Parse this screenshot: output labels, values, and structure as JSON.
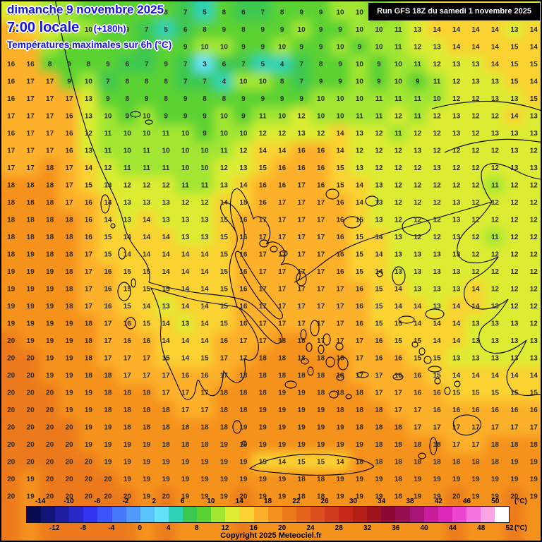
{
  "header": {
    "date": "dimanche 9 novembre 2025",
    "time": "7:00 locale",
    "offset": "(+180h)",
    "parameter": "Températures maximales sur 6h (°C)"
  },
  "run_info": {
    "label": "Run GFS 18Z du samedi 1 novembre 2025"
  },
  "copyright": "Copyright 2025 Meteociel.fr",
  "colors": {
    "header_text": "#1414e6",
    "number_text": "#2d2d2d",
    "run_bg": "#000000",
    "run_fg": "#ffffff"
  },
  "legend": {
    "unit": "(°C)",
    "min": -16,
    "max": 52,
    "step": 2,
    "top_ticks": [
      -14,
      -10,
      -6,
      -2,
      2,
      6,
      10,
      14,
      18,
      22,
      26,
      30,
      34,
      38,
      42,
      46,
      50
    ],
    "bottom_ticks": [
      -12,
      -8,
      -4,
      0,
      4,
      8,
      12,
      16,
      20,
      24,
      28,
      32,
      36,
      40,
      44,
      48,
      52
    ],
    "segment_colors": [
      "#0a0a50",
      "#141478",
      "#1e1ea0",
      "#2828c8",
      "#3232f0",
      "#3c55fa",
      "#4678fa",
      "#509bfa",
      "#5ac3fa",
      "#64e1f5",
      "#2ed2b4",
      "#3cc850",
      "#5ad232",
      "#a0e632",
      "#dcec32",
      "#fad232",
      "#fdb02a",
      "#f5921e",
      "#ec7a1a",
      "#e6641e",
      "#dc501e",
      "#d23c1e",
      "#c82819",
      "#b41e14",
      "#a0141e",
      "#8c0a32",
      "#960f50",
      "#aa1478",
      "#c81e9b",
      "#dc28b9",
      "#eb46cd",
      "#f573dc",
      "#faa5e6",
      "#ffffff"
    ]
  },
  "chart_data": {
    "type": "heatmap",
    "title": "Températures maximales sur 6h (°C)",
    "unit": "°C",
    "grid": {
      "cols": 28,
      "rows": 29,
      "values": [
        [
          12,
          12,
          11,
          10,
          9,
          9,
          8,
          9,
          8,
          7,
          5,
          8,
          6,
          7,
          8,
          9,
          9,
          10,
          10,
          9,
          10,
          13,
          14,
          14,
          14,
          14,
          14,
          13
        ],
        [
          16,
          14,
          12,
          11,
          10,
          9,
          9,
          7,
          5,
          6,
          8,
          9,
          8,
          9,
          9,
          10,
          9,
          9,
          10,
          10,
          11,
          13,
          14,
          14,
          14,
          14,
          13,
          14
        ],
        [
          17,
          16,
          10,
          9,
          9,
          8,
          9,
          7,
          8,
          9,
          10,
          10,
          9,
          9,
          10,
          9,
          9,
          10,
          9,
          10,
          11,
          12,
          13,
          14,
          14,
          14,
          15,
          14
        ],
        [
          16,
          16,
          8,
          9,
          8,
          9,
          6,
          7,
          9,
          7,
          3,
          6,
          7,
          5,
          4,
          7,
          8,
          9,
          10,
          9,
          10,
          11,
          12,
          13,
          13,
          14,
          15,
          15
        ],
        [
          16,
          17,
          17,
          9,
          10,
          7,
          8,
          8,
          8,
          7,
          7,
          4,
          10,
          10,
          8,
          7,
          9,
          9,
          10,
          9,
          10,
          9,
          11,
          12,
          13,
          13,
          15,
          14
        ],
        [
          16,
          17,
          17,
          17,
          13,
          9,
          8,
          9,
          8,
          9,
          8,
          8,
          9,
          9,
          9,
          9,
          10,
          10,
          10,
          11,
          11,
          11,
          10,
          12,
          12,
          13,
          13,
          15
        ],
        [
          17,
          17,
          17,
          16,
          13,
          10,
          9,
          10,
          9,
          9,
          9,
          10,
          9,
          11,
          10,
          12,
          10,
          10,
          11,
          11,
          12,
          11,
          12,
          13,
          12,
          12,
          14,
          13
        ],
        [
          16,
          17,
          17,
          16,
          12,
          11,
          10,
          10,
          11,
          10,
          9,
          10,
          10,
          12,
          12,
          13,
          12,
          14,
          13,
          12,
          11,
          12,
          12,
          13,
          12,
          13,
          13,
          13
        ],
        [
          17,
          17,
          17,
          16,
          13,
          11,
          10,
          11,
          10,
          10,
          10,
          11,
          12,
          14,
          14,
          16,
          16,
          14,
          12,
          12,
          12,
          13,
          12,
          12,
          12,
          12,
          13,
          12
        ],
        [
          17,
          17,
          18,
          17,
          14,
          12,
          11,
          11,
          11,
          10,
          10,
          12,
          13,
          15,
          16,
          16,
          16,
          15,
          13,
          12,
          12,
          12,
          13,
          12,
          12,
          12,
          13,
          13
        ],
        [
          18,
          18,
          18,
          17,
          15,
          13,
          12,
          12,
          12,
          11,
          11,
          13,
          14,
          16,
          16,
          17,
          16,
          15,
          14,
          13,
          12,
          12,
          12,
          12,
          12,
          11,
          12,
          12
        ],
        [
          18,
          18,
          18,
          17,
          16,
          14,
          13,
          13,
          13,
          12,
          12,
          14,
          15,
          16,
          17,
          17,
          17,
          16,
          14,
          13,
          12,
          12,
          12,
          13,
          12,
          12,
          12,
          12
        ],
        [
          18,
          18,
          18,
          18,
          16,
          14,
          13,
          14,
          13,
          13,
          13,
          15,
          16,
          17,
          17,
          17,
          17,
          16,
          15,
          13,
          12,
          12,
          12,
          13,
          12,
          12,
          12,
          12
        ],
        [
          18,
          18,
          18,
          18,
          16,
          15,
          14,
          14,
          14,
          13,
          13,
          15,
          16,
          17,
          17,
          17,
          17,
          16,
          15,
          14,
          13,
          12,
          12,
          13,
          12,
          11,
          12,
          12
        ],
        [
          18,
          19,
          18,
          18,
          17,
          15,
          14,
          14,
          14,
          14,
          14,
          15,
          16,
          17,
          17,
          17,
          17,
          16,
          15,
          14,
          13,
          13,
          13,
          13,
          12,
          12,
          12,
          12
        ],
        [
          19,
          19,
          19,
          18,
          17,
          16,
          15,
          15,
          14,
          14,
          14,
          15,
          16,
          17,
          17,
          17,
          17,
          16,
          15,
          14,
          13,
          13,
          13,
          13,
          12,
          12,
          12,
          12
        ],
        [
          19,
          19,
          19,
          18,
          17,
          16,
          15,
          15,
          15,
          14,
          14,
          15,
          16,
          17,
          17,
          17,
          17,
          17,
          16,
          15,
          14,
          13,
          13,
          13,
          14,
          12,
          12,
          12
        ],
        [
          19,
          19,
          19,
          18,
          17,
          16,
          15,
          14,
          13,
          14,
          14,
          15,
          16,
          17,
          17,
          17,
          17,
          17,
          16,
          15,
          14,
          14,
          13,
          14,
          14,
          13,
          12,
          12
        ],
        [
          19,
          19,
          19,
          19,
          18,
          17,
          16,
          15,
          14,
          13,
          14,
          15,
          16,
          17,
          17,
          17,
          17,
          17,
          16,
          15,
          15,
          14,
          14,
          14,
          13,
          13,
          13,
          12
        ],
        [
          20,
          19,
          19,
          19,
          18,
          17,
          16,
          16,
          14,
          14,
          14,
          16,
          17,
          17,
          18,
          18,
          17,
          17,
          17,
          16,
          15,
          15,
          14,
          14,
          13,
          13,
          13,
          13
        ],
        [
          20,
          20,
          19,
          19,
          18,
          17,
          17,
          17,
          15,
          14,
          15,
          17,
          17,
          18,
          18,
          18,
          18,
          18,
          17,
          16,
          16,
          15,
          15,
          13,
          13,
          13,
          13,
          13
        ],
        [
          20,
          20,
          19,
          19,
          18,
          18,
          17,
          17,
          17,
          16,
          16,
          17,
          18,
          18,
          18,
          18,
          18,
          18,
          17,
          17,
          16,
          16,
          15,
          14,
          14,
          14,
          14,
          14
        ],
        [
          20,
          20,
          20,
          19,
          19,
          18,
          18,
          18,
          17,
          17,
          17,
          18,
          18,
          18,
          19,
          19,
          18,
          18,
          18,
          17,
          17,
          16,
          16,
          15,
          15,
          15,
          15,
          15
        ],
        [
          20,
          20,
          20,
          19,
          19,
          18,
          18,
          18,
          18,
          17,
          17,
          18,
          18,
          19,
          19,
          19,
          19,
          18,
          18,
          18,
          17,
          17,
          16,
          16,
          16,
          16,
          16,
          16
        ],
        [
          20,
          20,
          20,
          20,
          19,
          19,
          18,
          18,
          18,
          18,
          18,
          18,
          19,
          19,
          19,
          19,
          19,
          19,
          18,
          18,
          18,
          17,
          17,
          17,
          17,
          17,
          17,
          17
        ],
        [
          20,
          20,
          20,
          20,
          19,
          19,
          19,
          19,
          18,
          18,
          18,
          19,
          19,
          19,
          19,
          19,
          19,
          19,
          19,
          18,
          18,
          18,
          18,
          17,
          17,
          18,
          18,
          18
        ],
        [
          20,
          20,
          20,
          20,
          20,
          19,
          19,
          19,
          19,
          19,
          19,
          19,
          19,
          15,
          14,
          15,
          15,
          14,
          18,
          18,
          18,
          18,
          18,
          18,
          18,
          18,
          19,
          19
        ],
        [
          20,
          19,
          20,
          20,
          20,
          20,
          19,
          19,
          19,
          19,
          19,
          19,
          19,
          19,
          19,
          18,
          18,
          19,
          19,
          19,
          18,
          19,
          19,
          19,
          19,
          19,
          19,
          19
        ],
        [
          20,
          19,
          20,
          20,
          20,
          20,
          20,
          19,
          20,
          19,
          19,
          19,
          20,
          19,
          19,
          18,
          18,
          19,
          19,
          19,
          18,
          19,
          19,
          20,
          19,
          19,
          20,
          19
        ]
      ]
    }
  }
}
